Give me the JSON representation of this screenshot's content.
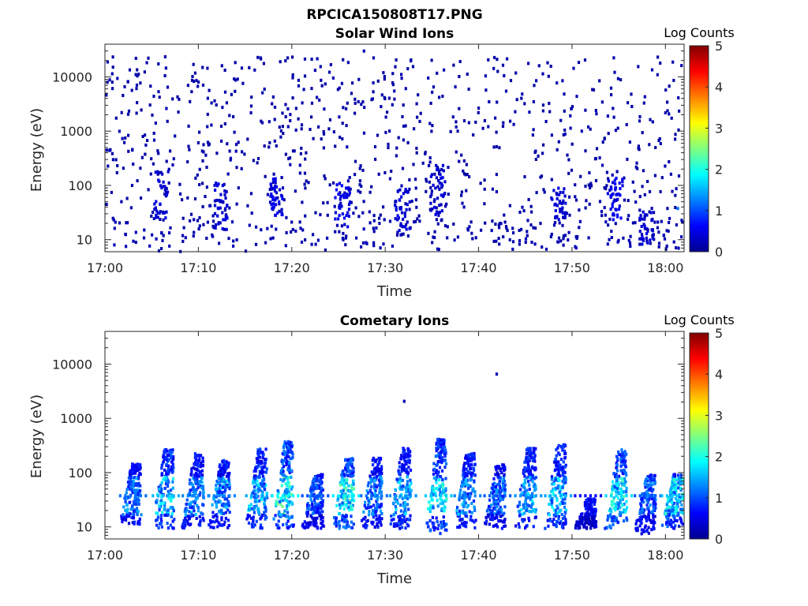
{
  "figure": {
    "title": "RPCICA150808T17.PNG"
  },
  "colorbar": {
    "label": "Log Counts",
    "ticks": [
      "0",
      "1",
      "2",
      "3",
      "4",
      "5"
    ],
    "range": [
      0,
      5
    ],
    "colormap": "jet",
    "colormap_stops": [
      "#00008f",
      "#0000ff",
      "#0080ff",
      "#00ffff",
      "#80ff80",
      "#ffff00",
      "#ff8000",
      "#ff0000",
      "#800000"
    ]
  },
  "axes": {
    "x_ticks": [
      "17:00",
      "17:10",
      "17:20",
      "17:30",
      "17:40",
      "17:50",
      "18:00"
    ],
    "y_ticks": [
      "10",
      "100",
      "1000",
      "10000"
    ],
    "xlabel": "Time",
    "ylabel": "Energy (eV)"
  },
  "chart_data": [
    {
      "type": "heatmap",
      "title": "Solar Wind Ions",
      "xlabel": "Time",
      "ylabel": "Energy (eV)",
      "x_range_minutes": [
        0,
        62
      ],
      "x_start": "17:00",
      "y_range": [
        6,
        40000
      ],
      "y_scale": "log",
      "color_range": [
        0,
        5
      ],
      "colorbar_label": "Log Counts",
      "description_points": [
        {
          "t": 1.2,
          "e": 10000,
          "v": 0.2
        },
        {
          "t": 6.4,
          "e": 15500,
          "v": 0.2
        },
        {
          "t": 27.6,
          "e": 32000,
          "v": 0.2
        },
        {
          "t": 40.9,
          "e": 22000,
          "v": 0.2
        },
        {
          "t": 61.2,
          "e": 40,
          "v": 1.2
        }
      ],
      "dense_columns": [
        {
          "t": 5.9,
          "e_low": 25,
          "e_high": 200,
          "v": 0.4
        },
        {
          "t": 12.2,
          "e_low": 15,
          "e_high": 120,
          "v": 0.4
        },
        {
          "t": 18.2,
          "e_low": 30,
          "e_high": 150,
          "v": 0.5
        },
        {
          "t": 25.3,
          "e_low": 15,
          "e_high": 120,
          "v": 0.5
        },
        {
          "t": 31.7,
          "e_low": 15,
          "e_high": 100,
          "v": 0.4
        },
        {
          "t": 35.5,
          "e_low": 30,
          "e_high": 250,
          "v": 0.4
        },
        {
          "t": 48.4,
          "e_low": 25,
          "e_high": 100,
          "v": 0.4
        },
        {
          "t": 54.5,
          "e_low": 25,
          "e_high": 150,
          "v": 0.5
        },
        {
          "t": 57.9,
          "e_low": 8,
          "e_high": 35,
          "v": 0.4
        }
      ]
    },
    {
      "type": "heatmap",
      "title": "Cometary Ions",
      "xlabel": "Time",
      "ylabel": "Energy (eV)",
      "x_range_minutes": [
        0,
        62
      ],
      "x_start": "17:00",
      "y_range": [
        6,
        40000
      ],
      "y_scale": "log",
      "color_range": [
        0,
        5
      ],
      "colorbar_label": "Log Counts",
      "isolated_points": [
        {
          "t": 31.9,
          "e": 2200,
          "v": 0.2
        },
        {
          "t": 41.8,
          "e": 7000,
          "v": 0.2
        }
      ],
      "bursts": [
        {
          "t": 2.9,
          "e_low": 12,
          "e_high": 160,
          "v": 1.3
        },
        {
          "t": 6.4,
          "e_low": 10,
          "e_high": 300,
          "v": 1.7
        },
        {
          "t": 9.6,
          "e_low": 10,
          "e_high": 250,
          "v": 1.4
        },
        {
          "t": 12.4,
          "e_low": 10,
          "e_high": 180,
          "v": 1.4
        },
        {
          "t": 16.4,
          "e_low": 10,
          "e_high": 300,
          "v": 1.6
        },
        {
          "t": 19.2,
          "e_low": 10,
          "e_high": 400,
          "v": 2.1
        },
        {
          "t": 22.4,
          "e_low": 10,
          "e_high": 100,
          "v": 1.1
        },
        {
          "t": 25.7,
          "e_low": 10,
          "e_high": 200,
          "v": 2.0
        },
        {
          "t": 28.7,
          "e_low": 10,
          "e_high": 200,
          "v": 1.3
        },
        {
          "t": 31.8,
          "e_low": 10,
          "e_high": 300,
          "v": 1.5
        },
        {
          "t": 35.6,
          "e_low": 8,
          "e_high": 450,
          "v": 1.8
        },
        {
          "t": 38.7,
          "e_low": 10,
          "e_high": 250,
          "v": 1.4
        },
        {
          "t": 41.9,
          "e_low": 10,
          "e_high": 150,
          "v": 1.2
        },
        {
          "t": 45.2,
          "e_low": 10,
          "e_high": 300,
          "v": 1.5
        },
        {
          "t": 48.4,
          "e_low": 10,
          "e_high": 350,
          "v": 1.6
        },
        {
          "t": 51.6,
          "e_low": 10,
          "e_high": 35,
          "v": 0.7
        },
        {
          "t": 54.9,
          "e_low": 10,
          "e_high": 300,
          "v": 1.9
        },
        {
          "t": 58.0,
          "e_low": 8,
          "e_high": 100,
          "v": 1.2
        },
        {
          "t": 60.9,
          "e_low": 10,
          "e_high": 100,
          "v": 1.8
        }
      ]
    }
  ]
}
